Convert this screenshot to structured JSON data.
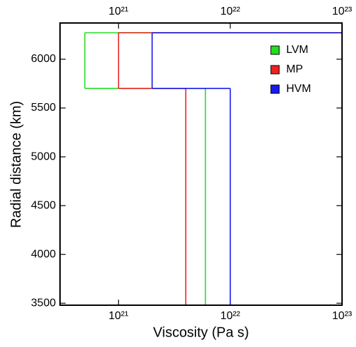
{
  "chart_data": {
    "type": "step",
    "xlabel": "Viscosity (Pa s)",
    "ylabel": "Radial distance (km)",
    "xscale": "log",
    "xlim": [
      3e+20,
      1e+23
    ],
    "ylim": [
      3480,
      6371
    ],
    "xticks": [
      {
        "value": 1e+21,
        "label": "10²¹"
      },
      {
        "value": 1e+22,
        "label": "10²²"
      },
      {
        "value": 1e+23,
        "label": "10²³"
      }
    ],
    "yticks": [
      3500,
      4000,
      4500,
      5000,
      5500,
      6000
    ],
    "boundaries": [
      3480,
      5701,
      6271
    ],
    "legend": "top-right",
    "series": [
      {
        "name": "LVM",
        "color": "#22dd22",
        "values": [
          6e+21,
          5e+20,
          1e+23
        ]
      },
      {
        "name": "MP",
        "color": "#ee2222",
        "values": [
          4e+21,
          1e+21,
          1e+23
        ]
      },
      {
        "name": "HVM",
        "color": "#1a1aee",
        "values": [
          1e+22,
          2e+21,
          1e+23
        ]
      }
    ]
  }
}
